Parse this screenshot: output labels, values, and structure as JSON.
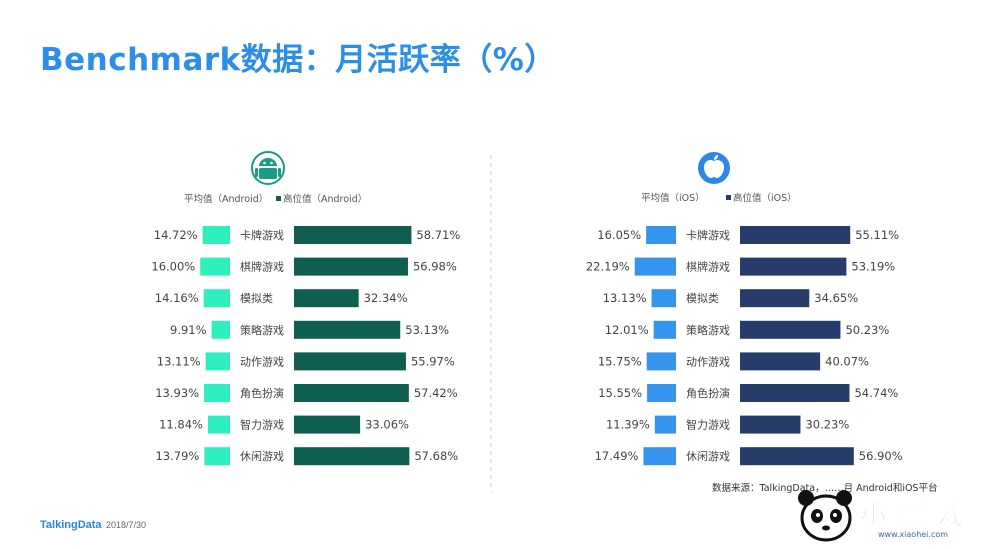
{
  "title": "Benchmark数据：月活跃率（%）",
  "footer": {
    "logo": "TalkingData",
    "date": "2018/7/30"
  },
  "source_text": "数据来源：TalkingData，……月 Android和iOS平台",
  "watermark": {
    "text": "小黑游戏",
    "url": "www.xiaohei.com"
  },
  "colors": {
    "android_avg": "#2ef0be",
    "android_top": "#0e5f52",
    "ios_avg": "#3595ee",
    "ios_top": "#263d6b",
    "divider": "#cccccc"
  },
  "chart_data": [
    {
      "type": "bar",
      "platform_icon": "android-icon",
      "categories": [
        "卡牌游戏",
        "棋牌游戏",
        "模拟类",
        "策略游戏",
        "动作游戏",
        "角色扮演",
        "智力游戏",
        "休闲游戏"
      ],
      "series": [
        {
          "name": "平均值（Android）",
          "values": [
            14.72,
            16.0,
            14.16,
            9.91,
            13.11,
            13.93,
            11.84,
            13.79
          ]
        },
        {
          "name": "高位值（Android）",
          "values": [
            58.71,
            56.98,
            32.34,
            53.13,
            55.97,
            57.42,
            33.06,
            57.68
          ]
        }
      ],
      "value_labels": [
        [
          "14.72%",
          "16.00%",
          "14.16%",
          "9.91%",
          "13.11%",
          "13.93%",
          "11.84%",
          "13.79%"
        ],
        [
          "58.71%",
          "56.98%",
          "32.34%",
          "53.13%",
          "55.97%",
          "57.42%",
          "33.06%",
          "57.68%"
        ]
      ],
      "legend_position": "top"
    },
    {
      "type": "bar",
      "platform_icon": "apple-icon",
      "categories": [
        "卡牌游戏",
        "棋牌游戏",
        "模拟类",
        "策略游戏",
        "动作游戏",
        "角色扮演",
        "智力游戏",
        "休闲游戏"
      ],
      "series": [
        {
          "name": "平均值（iOS）",
          "values": [
            16.05,
            22.19,
            13.13,
            12.01,
            15.75,
            15.55,
            11.39,
            17.49
          ]
        },
        {
          "name": "高位值（iOS）",
          "values": [
            55.11,
            53.19,
            34.65,
            50.23,
            40.07,
            54.74,
            30.23,
            56.9
          ]
        }
      ],
      "value_labels": [
        [
          "16.05%",
          "22.19%",
          "13.13%",
          "12.01%",
          "15.75%",
          "15.55%",
          "11.39%",
          "17.49%"
        ],
        [
          "55.11%",
          "53.19%",
          "34.65%",
          "50.23%",
          "40.07%",
          "54.74%",
          "30.23%",
          "56.90%"
        ]
      ],
      "legend_position": "top"
    }
  ]
}
